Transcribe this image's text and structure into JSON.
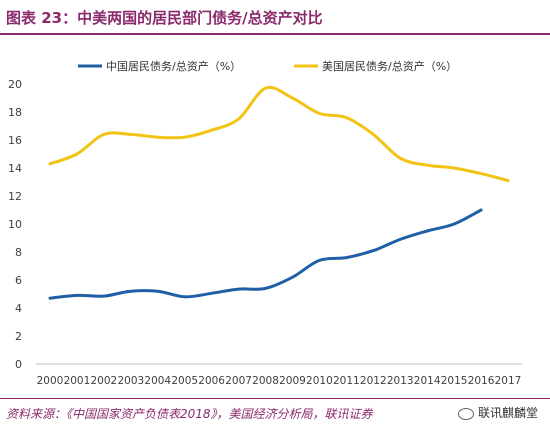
{
  "header": {
    "title": "图表 23：中美两国的居民部门债务/总资产对比"
  },
  "footer": {
    "source": "资料来源：《中国国家资产负债表2018》，美国经济分析局，联讯证券",
    "brand": "联讯麒麟堂",
    "brand_icon": "wechat-icon"
  },
  "colors": {
    "title": "#8a2a6c",
    "china": "#1f5fa6",
    "usa": "#f2c314",
    "axis_text": "#404040"
  },
  "chart_data": {
    "type": "line",
    "categories": [
      "2000",
      "2001",
      "2002",
      "2003",
      "2004",
      "2005",
      "2006",
      "2007",
      "2008",
      "2009",
      "2010",
      "2011",
      "2012",
      "2013",
      "2014",
      "2015",
      "2016",
      "2017"
    ],
    "series": [
      {
        "name": "中国居民债务/总资产（%）",
        "color": "#1f5fa6",
        "values": [
          4.7,
          4.9,
          4.85,
          5.2,
          5.2,
          4.8,
          5.05,
          5.35,
          5.4,
          6.2,
          7.4,
          7.6,
          8.1,
          8.9,
          9.5,
          10.0,
          11.0,
          null
        ]
      },
      {
        "name": "美国居民债务/总资产（%）",
        "color": "#f2c314",
        "values": [
          14.3,
          15.0,
          16.4,
          16.4,
          16.2,
          16.2,
          16.7,
          17.5,
          19.7,
          19.0,
          17.9,
          17.6,
          16.4,
          14.7,
          14.2,
          14.0,
          13.6,
          13.1
        ]
      }
    ],
    "ylim": [
      0,
      20
    ],
    "yticks": [
      0,
      2,
      4,
      6,
      8,
      10,
      12,
      14,
      16,
      18,
      20
    ],
    "grid": false,
    "legend_position": "top"
  }
}
